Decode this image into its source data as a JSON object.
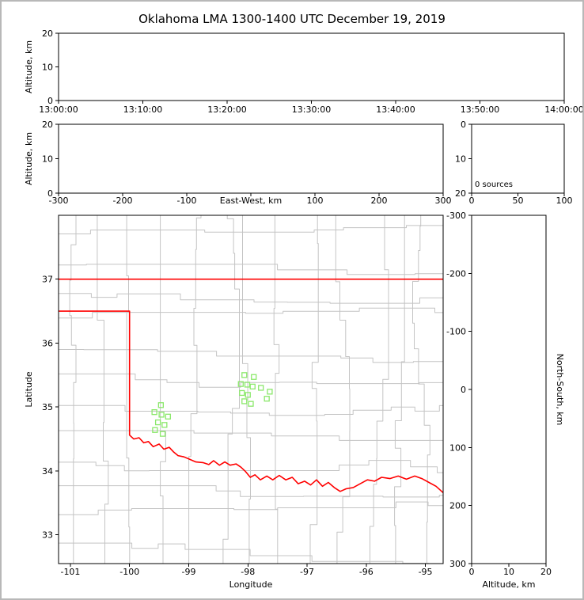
{
  "figure": {
    "title": "Oklahoma LMA 1300-1400 UTC December 19, 2019",
    "background": "#ffffff",
    "frame_color": "#b8b8b8"
  },
  "colors": {
    "axis": "#000000",
    "county_lines": "#c4c4c4",
    "state_border": "#ff0000",
    "station_marker": "#8be86b"
  },
  "chart_data": [
    {
      "id": "time_height",
      "type": "scatter",
      "title": "",
      "xlabel": "",
      "ylabel": "Altitude, km",
      "xtick_labels": [
        "13:00:00",
        "13:10:00",
        "13:20:00",
        "13:30:00",
        "13:40:00",
        "13:50:00",
        "14:00:00"
      ],
      "ylim": [
        0,
        20
      ],
      "yticks": [
        0,
        10,
        20
      ],
      "points": []
    },
    {
      "id": "east_west_altitude",
      "type": "scatter",
      "xlabel": "East-West, km",
      "ylabel": "Altitude, km",
      "xlim": [
        -300,
        300
      ],
      "xticks": [
        -300,
        -200,
        -100,
        0,
        100,
        200,
        300
      ],
      "xtick_labels": [
        "-300",
        "-200",
        "-100",
        "",
        "100",
        "200",
        "300"
      ],
      "ylim": [
        0,
        20
      ],
      "yticks": [
        0,
        10,
        20
      ],
      "points": []
    },
    {
      "id": "altitude_histogram",
      "type": "line",
      "annotation": "0 sources",
      "xlim": [
        0,
        100
      ],
      "xticks": [
        0,
        50,
        100
      ],
      "ylim": [
        0,
        20
      ],
      "yticks": [
        20,
        10,
        0
      ],
      "points": []
    },
    {
      "id": "plan_view",
      "type": "scatter",
      "xlabel": "Longitude",
      "ylabel": "Latitude",
      "xlim": [
        -101.2,
        -94.7
      ],
      "xticks": [
        -101,
        -100,
        -99,
        -98,
        -97,
        -96,
        -95
      ],
      "ylim": [
        32.55,
        38.0
      ],
      "yticks": [
        33,
        34,
        35,
        36,
        37
      ],
      "stations": [
        [
          -99.47,
          35.03
        ],
        [
          -99.58,
          34.92
        ],
        [
          -99.46,
          34.88
        ],
        [
          -99.35,
          34.85
        ],
        [
          -99.52,
          34.76
        ],
        [
          -99.41,
          34.72
        ],
        [
          -99.57,
          34.64
        ],
        [
          -99.44,
          34.58
        ],
        [
          -98.06,
          35.5
        ],
        [
          -97.9,
          35.47
        ],
        [
          -98.12,
          35.36
        ],
        [
          -98.01,
          35.35
        ],
        [
          -97.92,
          35.32
        ],
        [
          -97.78,
          35.3
        ],
        [
          -98.1,
          35.22
        ],
        [
          -98.0,
          35.19
        ],
        [
          -98.06,
          35.09
        ],
        [
          -97.95,
          35.05
        ],
        [
          -97.63,
          35.24
        ],
        [
          -97.68,
          35.13
        ]
      ],
      "state_border_polylines": [
        [
          [
            -101.2,
            37.0
          ],
          [
            -94.7,
            37.0
          ]
        ],
        [
          [
            -101.2,
            36.5
          ],
          [
            -100.0,
            36.5
          ],
          [
            -100.0,
            34.56
          ],
          [
            -99.93,
            34.5
          ],
          [
            -99.84,
            34.52
          ],
          [
            -99.76,
            34.44
          ],
          [
            -99.68,
            34.46
          ],
          [
            -99.6,
            34.38
          ],
          [
            -99.5,
            34.42
          ],
          [
            -99.42,
            34.34
          ],
          [
            -99.33,
            34.37
          ],
          [
            -99.26,
            34.3
          ],
          [
            -99.18,
            34.24
          ],
          [
            -99.08,
            34.22
          ],
          [
            -98.98,
            34.18
          ],
          [
            -98.88,
            34.14
          ],
          [
            -98.76,
            34.13
          ],
          [
            -98.66,
            34.1
          ],
          [
            -98.58,
            34.16
          ],
          [
            -98.48,
            34.09
          ],
          [
            -98.39,
            34.14
          ],
          [
            -98.3,
            34.09
          ],
          [
            -98.2,
            34.11
          ],
          [
            -98.12,
            34.06
          ],
          [
            -98.04,
            33.99
          ],
          [
            -97.96,
            33.9
          ],
          [
            -97.88,
            33.94
          ],
          [
            -97.79,
            33.86
          ],
          [
            -97.68,
            33.92
          ],
          [
            -97.58,
            33.86
          ],
          [
            -97.47,
            33.93
          ],
          [
            -97.36,
            33.86
          ],
          [
            -97.25,
            33.9
          ],
          [
            -97.15,
            33.8
          ],
          [
            -97.04,
            33.84
          ],
          [
            -96.94,
            33.78
          ],
          [
            -96.84,
            33.86
          ],
          [
            -96.74,
            33.76
          ],
          [
            -96.64,
            33.82
          ],
          [
            -96.54,
            33.74
          ],
          [
            -96.44,
            33.68
          ],
          [
            -96.34,
            33.72
          ],
          [
            -96.22,
            33.74
          ],
          [
            -96.1,
            33.8
          ],
          [
            -95.98,
            33.86
          ],
          [
            -95.86,
            33.84
          ],
          [
            -95.74,
            33.9
          ],
          [
            -95.6,
            33.88
          ],
          [
            -95.46,
            33.92
          ],
          [
            -95.32,
            33.87
          ],
          [
            -95.18,
            33.92
          ],
          [
            -95.06,
            33.88
          ],
          [
            -94.94,
            33.82
          ],
          [
            -94.82,
            33.76
          ],
          [
            -94.7,
            33.66
          ]
        ]
      ],
      "county_grid": {
        "seed": 11,
        "cell_w_deg": 0.5,
        "cell_h_deg": 0.44
      }
    },
    {
      "id": "altitude_north_south",
      "type": "scatter",
      "xlabel": "Altitude, km",
      "ylabel_right": "North-South, km",
      "xlim": [
        0,
        20
      ],
      "xticks": [
        0,
        10,
        20
      ],
      "ylim": [
        -300,
        300
      ],
      "yticks": [
        300,
        200,
        100,
        0,
        -100,
        -200,
        -300
      ],
      "points": []
    }
  ]
}
